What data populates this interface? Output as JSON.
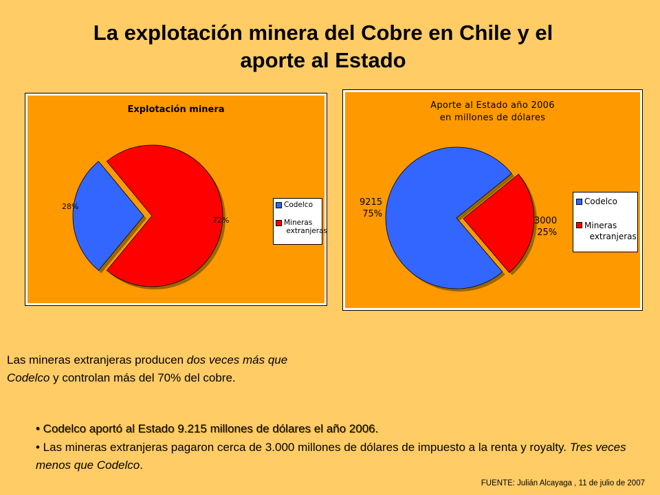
{
  "title": {
    "line1": "La explotación minera del Cobre en Chile y el",
    "line2": "aporte al Estado"
  },
  "chart_data": [
    {
      "type": "pie",
      "title": "Explotación minera",
      "categories": [
        "Codelco",
        "Mineras extranjeras"
      ],
      "values": [
        28,
        72
      ],
      "data_labels": [
        "28%",
        "72%"
      ],
      "legend": [
        "Codelco",
        "Mineras extranjeras"
      ],
      "legend_placement": "right",
      "colors": [
        "#3366FF",
        "#FF0000"
      ],
      "exploded": "Mineras extranjeras"
    },
    {
      "type": "pie",
      "title_line1": "Aporte al Estado año 2006",
      "title_line2": "en millones de dólares",
      "categories": [
        "Codelco",
        "Mineras extranjeras"
      ],
      "values": [
        9215,
        3000
      ],
      "percents": [
        "75%",
        "25%"
      ],
      "data_labels": [
        "9215",
        "3000"
      ],
      "legend": [
        "Codelco",
        "Mineras extranjeras"
      ],
      "legend_placement": "right",
      "colors": [
        "#3366FF",
        "#FF0000"
      ],
      "exploded": "Mineras extranjeras"
    }
  ],
  "legend1": {
    "item1": "Codelco",
    "item2a": "Mineras",
    "item2b": "extranjeras"
  },
  "legend2": {
    "item1": "Codelco",
    "item2a": "Mineras",
    "item2b": "extranjeras"
  },
  "paragraph": {
    "part1": "Las mineras extranjeras producen ",
    "italic": "dos veces más que Codelco",
    "part2": " y controlan más del 70% del cobre."
  },
  "bullets": {
    "b1": "• Codelco aportó al Estado 9.215 millones de dólares el año 2006.",
    "b2_prefix": "•   Las mineras extranjeras pagaron cerca de 3.000 millones de dólares de impuesto a la renta y royalty. ",
    "b2_italic": "Tres veces menos que Codelco",
    "b2_suffix": "."
  },
  "source": "FUENTE:  Julián Alcayaga , 11 de julio de 2007"
}
